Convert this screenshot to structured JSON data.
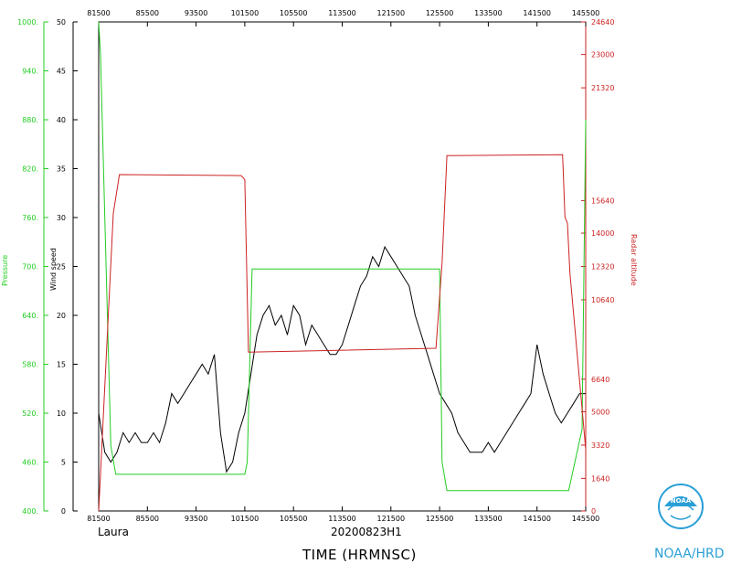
{
  "header": {
    "storm_name": "Laura",
    "flight_id": "20200823H1",
    "x_title": "TIME (HRMNSC)",
    "org_label": "NOAA/HRD"
  },
  "colors": {
    "wind": "#000000",
    "pressure": "#22cc22",
    "altitude": "#cc2222",
    "org": "#2a9fd6"
  },
  "chart_data": {
    "type": "line",
    "title": "",
    "xlabel": "TIME (HRMNSC)",
    "x_ticks": [
      "81500",
      "85500",
      "93500",
      "101500",
      "105500",
      "113500",
      "121500",
      "125500",
      "133500",
      "141500",
      "145500"
    ],
    "x_range_hhmmss": [
      "08:15:00",
      "14:55:00"
    ],
    "left_axis_wind": {
      "label": "Wind speed",
      "ylim": [
        0,
        50
      ],
      "ticks": [
        "0",
        "5",
        "10",
        "15",
        "20",
        "25",
        "30",
        "35",
        "40",
        "45",
        "50"
      ]
    },
    "left_axis_pressure": {
      "label": "Pressure",
      "ylim": [
        400,
        1000
      ],
      "ticks": [
        "400.",
        "460.",
        "520.",
        "580.",
        "640.",
        "700.",
        "760.",
        "820.",
        "880.",
        "940.",
        "1000."
      ]
    },
    "right_axis_altitude": {
      "label": "Radar altitude",
      "ylim": [
        0,
        24640
      ],
      "ticks": [
        "0",
        "1640",
        "3320",
        "5000",
        "6640",
        "10640",
        "12320",
        "14000",
        "15640",
        "21320",
        "23000",
        "24640"
      ]
    },
    "series": [
      {
        "name": "Wind speed",
        "axis": "left_wind",
        "x": [
          "08:15:00",
          "08:20:00",
          "08:25:00",
          "08:30:00",
          "08:35:00",
          "08:40:00",
          "08:45:00",
          "08:50:00",
          "08:55:00",
          "09:00:00",
          "09:05:00",
          "09:10:00",
          "09:15:00",
          "09:20:00",
          "09:25:00",
          "09:30:00",
          "09:35:00",
          "09:40:00",
          "09:45:00",
          "09:50:00",
          "09:55:00",
          "10:00:00",
          "10:05:00",
          "10:10:00",
          "10:15:00",
          "10:20:00",
          "10:25:00",
          "10:30:00",
          "10:35:00",
          "10:40:00",
          "10:45:00",
          "10:50:00",
          "10:55:00",
          "11:00:00",
          "11:05:00",
          "11:10:00",
          "11:15:00",
          "11:20:00",
          "11:25:00",
          "11:30:00",
          "11:35:00",
          "11:40:00",
          "11:45:00",
          "11:50:00",
          "11:55:00",
          "12:00:00",
          "12:05:00",
          "12:10:00",
          "12:15:00",
          "12:20:00",
          "12:25:00",
          "12:30:00",
          "12:35:00",
          "12:40:00",
          "12:45:00",
          "12:50:00",
          "12:55:00",
          "13:00:00",
          "13:05:00",
          "13:10:00",
          "13:15:00",
          "13:20:00",
          "13:25:00",
          "13:30:00",
          "13:35:00",
          "13:40:00",
          "13:45:00",
          "13:50:00",
          "13:55:00",
          "14:00:00",
          "14:05:00",
          "14:10:00",
          "14:15:00",
          "14:20:00",
          "14:25:00",
          "14:30:00",
          "14:35:00",
          "14:40:00",
          "14:45:00",
          "14:50:00",
          "14:55:00"
        ],
        "values": [
          10,
          6,
          5,
          6,
          8,
          7,
          8,
          7,
          7,
          8,
          7,
          9,
          12,
          11,
          12,
          13,
          14,
          15,
          14,
          16,
          8,
          4,
          5,
          8,
          10,
          14,
          18,
          20,
          21,
          19,
          20,
          18,
          21,
          20,
          17,
          19,
          18,
          17,
          16,
          16,
          17,
          19,
          21,
          23,
          24,
          26,
          25,
          27,
          26,
          25,
          24,
          23,
          20,
          18,
          16,
          14,
          12,
          11,
          10,
          8,
          7,
          6,
          6,
          6,
          7,
          6,
          7,
          8,
          9,
          10,
          11,
          12,
          17,
          14,
          12,
          10,
          9,
          10,
          11,
          12,
          12
        ],
        "color": "#000000"
      },
      {
        "name": "Pressure",
        "axis": "left_pressure",
        "x": [
          "08:15:00",
          "08:16:30",
          "08:25:00",
          "08:29:00",
          "10:15:00",
          "10:17:00",
          "10:21:00",
          "12:55:00",
          "12:57:00",
          "13:01:00",
          "14:41:00",
          "14:52:00",
          "14:55:00"
        ],
        "values": [
          1000,
          960,
          480,
          445,
          445,
          460,
          697,
          697,
          460,
          425,
          425,
          500,
          880
        ],
        "color": "#22cc22"
      },
      {
        "name": "Radar altitude",
        "axis": "right_altitude",
        "x": [
          "08:15:00",
          "08:27:00",
          "08:32:00",
          "10:12:00",
          "10:15:00",
          "10:18:00",
          "12:52:00",
          "12:57:00",
          "13:01:00",
          "14:36:00",
          "14:38:00",
          "14:40:00",
          "14:42:00",
          "14:55:00"
        ],
        "values": [
          0,
          15000,
          16950,
          16900,
          16700,
          8000,
          8200,
          12500,
          17900,
          17950,
          14800,
          14500,
          12000,
          3100
        ],
        "color": "#cc2222"
      }
    ]
  }
}
